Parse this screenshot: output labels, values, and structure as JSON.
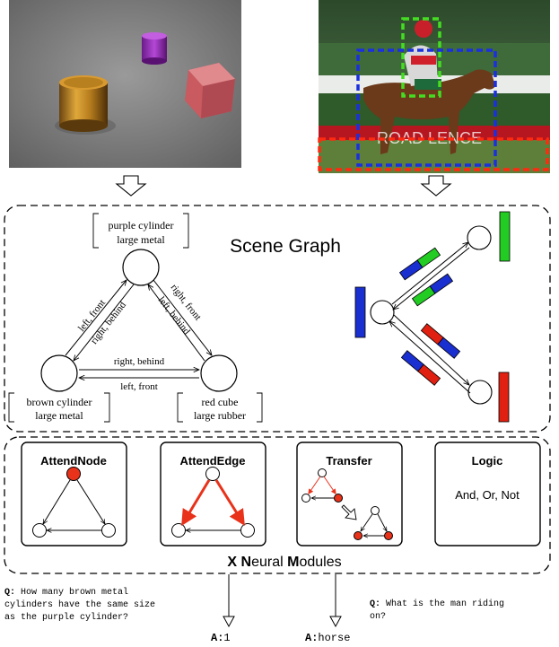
{
  "scene_graph": {
    "title": "Scene Graph",
    "nodes": [
      {
        "id": "purple",
        "attr1": "purple  cylinder",
        "attr2": "large     metal"
      },
      {
        "id": "brown",
        "attr1": "brown  cylinder",
        "attr2": "large     metal"
      },
      {
        "id": "red",
        "attr1": "red        cube",
        "attr2": "large  rubber"
      }
    ],
    "edges": {
      "left_outer": "left, front",
      "left_inner": "right, behind",
      "right_outer": "right, front",
      "right_inner": "left, behind",
      "bottom_top": "right, behind",
      "bottom_bottom": "left, front"
    }
  },
  "modules": {
    "title": "X Neural Modules",
    "title_parts": [
      "X ",
      "N",
      "eural ",
      "M",
      "odules"
    ],
    "items": [
      {
        "name": "AttendNode"
      },
      {
        "name": "AttendEdge"
      },
      {
        "name": "Transfer"
      },
      {
        "name": "Logic",
        "body": "And, Or, Not"
      }
    ]
  },
  "qa": [
    {
      "q_label": "Q:",
      "q_lines": [
        "How many brown metal",
        "cylinders have the same size",
        "as the purple cylinder?"
      ],
      "a_label": "A:",
      "answer": "1"
    },
    {
      "q_label": "Q:",
      "q_lines": [
        "What is the man riding",
        "on?"
      ],
      "a_label": "A:",
      "answer": "horse"
    }
  ],
  "colors": {
    "accent_red": "#e8321a",
    "bar_green": "#22cc22",
    "bar_blue": "#1a2fd0",
    "bar_red": "#e02010",
    "box_green": "#44dd22",
    "box_blue": "#1a30e0",
    "box_red": "#ff2a10"
  }
}
